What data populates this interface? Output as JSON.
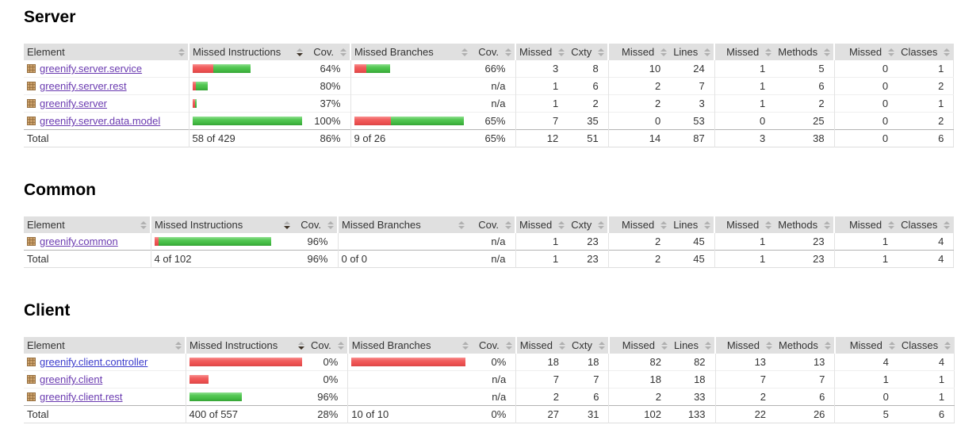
{
  "report_type": "coverage-report",
  "columns": [
    "Element",
    "Missed Instructions",
    "Cov.",
    "Missed Branches",
    "Cov.",
    "Missed",
    "Cxty",
    "Missed",
    "Lines",
    "Missed",
    "Methods",
    "Missed",
    "Classes"
  ],
  "sort": {
    "column": "Missed Instructions",
    "direction": "desc"
  },
  "icons": {
    "package_icon": "brown-grid-square",
    "sort_icon": "up-down-triangles"
  },
  "colors": {
    "header_bg": "#e0e0e0",
    "link_visited": "#6a3ab0",
    "link_unvisited": "#3b3bcc",
    "bar_red": "#ee5050",
    "bar_green": "#44bb44",
    "sort_icon_neutral": "#b0b0b0",
    "sort_icon_active": "#3d3226",
    "body_text": "#333333",
    "heading_text": "#000000",
    "package_icon_fill": "#cfa56f",
    "package_icon_line": "#936c3d"
  },
  "sections": [
    {
      "title": "Server",
      "rows": [
        {
          "name": "greenify.server.service",
          "visited": true,
          "instr_bar": {
            "red": 26,
            "green": 47
          },
          "instr_cov": "64%",
          "branch_bar": {
            "red": 15,
            "green": 30
          },
          "branch_cov": "66%",
          "nums": [
            "3",
            "8",
            "10",
            "24",
            "1",
            "5",
            "0",
            "1"
          ]
        },
        {
          "name": "greenify.server.rest",
          "visited": true,
          "instr_bar": {
            "red": 4,
            "green": 15
          },
          "instr_cov": "80%",
          "branch_bar": {
            "red": 0,
            "green": 0
          },
          "branch_cov": "n/a",
          "nums": [
            "1",
            "6",
            "2",
            "7",
            "1",
            "6",
            "0",
            "2"
          ]
        },
        {
          "name": "greenify.server",
          "visited": true,
          "instr_bar": {
            "red": 3,
            "green": 2
          },
          "instr_cov": "37%",
          "branch_bar": {
            "red": 0,
            "green": 0
          },
          "branch_cov": "n/a",
          "nums": [
            "1",
            "2",
            "2",
            "3",
            "1",
            "2",
            "0",
            "1"
          ]
        },
        {
          "name": "greenify.server.data.model",
          "visited": true,
          "instr_bar": {
            "red": 0,
            "green": 138
          },
          "instr_cov": "100%",
          "branch_bar": {
            "red": 46,
            "green": 92
          },
          "branch_cov": "65%",
          "nums": [
            "7",
            "35",
            "0",
            "53",
            "0",
            "25",
            "0",
            "2"
          ]
        }
      ],
      "total": {
        "label": "Total",
        "instr": "58 of 429",
        "instr_cov": "86%",
        "branch": "9 of 26",
        "branch_cov": "65%",
        "nums": [
          "12",
          "51",
          "14",
          "87",
          "3",
          "38",
          "0",
          "6"
        ]
      }
    },
    {
      "title": "Common",
      "rows": [
        {
          "name": "greenify.common",
          "visited": true,
          "instr_bar": {
            "red": 5,
            "green": 142
          },
          "instr_cov": "96%",
          "branch_bar": {
            "red": 0,
            "green": 0
          },
          "branch_cov": "n/a",
          "nums": [
            "1",
            "23",
            "2",
            "45",
            "1",
            "23",
            "1",
            "4"
          ]
        }
      ],
      "total": {
        "label": "Total",
        "instr": "4 of 102",
        "instr_cov": "96%",
        "branch": "0 of 0",
        "branch_cov": "n/a",
        "nums": [
          "1",
          "23",
          "2",
          "45",
          "1",
          "23",
          "1",
          "4"
        ]
      }
    },
    {
      "title": "Client",
      "rows": [
        {
          "name": "greenify.client.controller",
          "visited": false,
          "instr_bar": {
            "red": 142,
            "green": 0
          },
          "instr_cov": "0%",
          "branch_bar": {
            "red": 144,
            "green": 0
          },
          "branch_cov": "0%",
          "nums": [
            "18",
            "18",
            "82",
            "82",
            "13",
            "13",
            "4",
            "4"
          ]
        },
        {
          "name": "greenify.client",
          "visited": true,
          "instr_bar": {
            "red": 24,
            "green": 0
          },
          "instr_cov": "0%",
          "branch_bar": {
            "red": 0,
            "green": 0
          },
          "branch_cov": "n/a",
          "nums": [
            "7",
            "7",
            "18",
            "18",
            "7",
            "7",
            "1",
            "1"
          ]
        },
        {
          "name": "greenify.client.rest",
          "visited": true,
          "instr_bar": {
            "red": 0,
            "green": 66
          },
          "instr_cov": "96%",
          "branch_bar": {
            "red": 0,
            "green": 0
          },
          "branch_cov": "n/a",
          "nums": [
            "2",
            "6",
            "2",
            "33",
            "2",
            "6",
            "0",
            "1"
          ]
        }
      ],
      "total": {
        "label": "Total",
        "instr": "400 of 557",
        "instr_cov": "28%",
        "branch": "10 of 10",
        "branch_cov": "0%",
        "nums": [
          "27",
          "31",
          "102",
          "133",
          "22",
          "26",
          "5",
          "6"
        ]
      }
    }
  ]
}
